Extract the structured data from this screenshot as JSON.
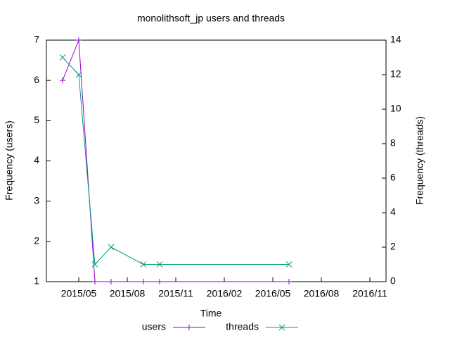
{
  "chart_data": {
    "type": "line",
    "title": "monolithsoft_jp users and threads",
    "x_label": "Time",
    "y_label": "Frequency (users)",
    "y2_label": "Frequency (threads)",
    "x": [
      "2015/04",
      "2015/05",
      "2015/06",
      "2015/07",
      "2015/09",
      "2015/10",
      "2016/06"
    ],
    "series": [
      {
        "name": "users",
        "color": "#9400d3",
        "marker": "plus",
        "axis": "y",
        "values": [
          6,
          7,
          1,
          1,
          1,
          1,
          1
        ]
      },
      {
        "name": "threads",
        "color": "#009e73",
        "marker": "cross",
        "axis": "y2",
        "values": [
          13,
          12,
          1,
          2,
          1,
          1,
          1
        ]
      }
    ],
    "xlim": [
      "2015/03",
      "2016/12"
    ],
    "xticks": [
      "2015/05",
      "2015/08",
      "2015/11",
      "2016/02",
      "2016/05",
      "2016/08",
      "2016/11"
    ],
    "ylim": [
      1,
      7
    ],
    "yticks": [
      1,
      2,
      3,
      4,
      5,
      6,
      7
    ],
    "y2lim": [
      0,
      14
    ],
    "y2ticks": [
      0,
      2,
      4,
      6,
      8,
      10,
      12,
      14
    ],
    "legend": "bottom",
    "grid": false
  }
}
